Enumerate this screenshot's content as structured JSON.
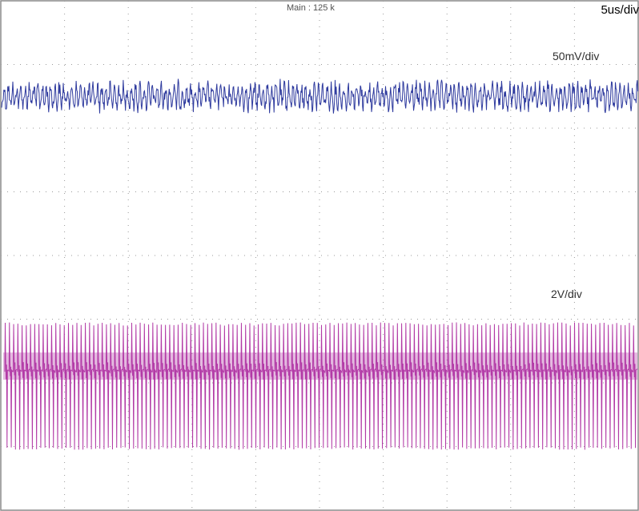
{
  "header": {
    "acquisition": "Main : 125 k",
    "timebase": "5us/div"
  },
  "colors": {
    "background": "#ffffff",
    "grid": "#9a9a9a",
    "channel1": "#2e3a9e",
    "channel2": "#b23aa6"
  },
  "chart_data": {
    "type": "line",
    "title": "",
    "xlabel": "",
    "ylabel": "",
    "grid": true,
    "x_divisions": 10,
    "y_divisions": 8,
    "x_scale": "5us/div",
    "series": [
      {
        "name": "50mV/div",
        "scale_label": "50mV/div",
        "color": "#2e3a9e",
        "waveform": "noise ripple",
        "center_div": 6.5,
        "peak_to_peak_div": 0.55,
        "cycles": 150
      },
      {
        "name": "2V/div",
        "scale_label": "2V/div",
        "color": "#b23aa6",
        "waveform": "switching pulse train",
        "high_div": 2.95,
        "low_div": 0.95,
        "dense_band_center_div": 2.25,
        "cycles": 150
      }
    ]
  }
}
